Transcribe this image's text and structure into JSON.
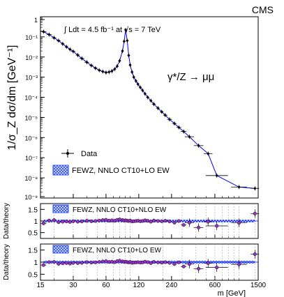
{
  "header": {
    "experiment": "CMS"
  },
  "chart_data": {
    "type": "scatter",
    "x_scale": "log",
    "x_ticks": [
      15,
      30,
      60,
      120,
      240,
      600,
      1500
    ],
    "x_tick_labels": [
      "15",
      "30",
      "60",
      "120",
      "240",
      "600",
      "1500"
    ],
    "xlabel": "m  [GeV]",
    "main": {
      "ylabel": "1/σ_Z dσ/dm [GeV⁻¹]",
      "y_scale": "log",
      "ylim": [
        1e-09,
        1
      ],
      "y_tick_labels": [
        "1",
        "10⁻¹",
        "10⁻²",
        "10⁻³",
        "10⁻⁴",
        "10⁻⁵",
        "10⁻⁶",
        "10⁻⁷",
        "10⁻⁸",
        "10⁻⁹"
      ],
      "lumi_text": "∫ Ldt = 4.5 fb⁻¹ at √s = 7 TeV",
      "process_label": "γ*/Z → μμ",
      "legend": [
        "Data",
        "FEWZ, NNLO CT10+LO EW"
      ],
      "data_x": [
        16,
        18,
        20,
        22,
        24,
        26,
        28,
        30,
        33,
        36,
        40,
        44,
        48,
        52,
        56,
        60,
        64,
        68,
        72,
        76,
        80,
        85,
        88,
        91,
        94,
        97,
        100,
        104,
        108,
        113,
        118,
        124,
        130,
        137,
        145,
        155,
        165,
        180,
        195,
        210,
        230,
        255,
        280,
        310,
        350,
        425,
        520,
        625,
        1000,
        1400
      ],
      "data_y": [
        0.18,
        0.13,
        0.09,
        0.065,
        0.045,
        0.032,
        0.024,
        0.019,
        0.0125,
        0.0085,
        0.0055,
        0.0038,
        0.0028,
        0.0022,
        0.0019,
        0.0017,
        0.0018,
        0.002,
        0.0025,
        0.0035,
        0.0065,
        0.02,
        0.06,
        0.22,
        0.065,
        0.012,
        0.004,
        0.0018,
        0.001,
        0.00065,
        0.00045,
        0.00031,
        0.00022,
        0.00015,
        0.0001,
        6.8e-05,
        4.6e-05,
        2.9e-05,
        1.9e-05,
        1.3e-05,
        8e-06,
        5e-06,
        3.2e-06,
        2e-06,
        1.1e-06,
        4e-07,
        1.6e-07,
        1.3e-08,
        3.5e-09,
        3e-09
      ]
    },
    "ratio_panels": [
      {
        "legend": "FEWZ, NNLO CT10+NLO EW",
        "ylabel": "Data/theory",
        "ylim": [
          0.25,
          1.75
        ],
        "y_tick_labels": [
          "1.5",
          "1",
          "0.5"
        ],
        "values": [
          0.9,
          1.02,
          1.04,
          0.95,
          0.97,
          0.98,
          0.96,
          0.99,
          0.97,
          0.98,
          1.01,
          0.99,
          1.0,
          1.02,
          1.04,
          1.05,
          1.02,
          1.03,
          1.01,
          1.05,
          1.07,
          1.04,
          1.02,
          1.03,
          1.01,
          1.0,
          1.02,
          0.98,
          0.99,
          1.0,
          1.01,
          0.99,
          1.0,
          1.03,
          1.01,
          0.97,
          1.02,
          1.0,
          0.99,
          1.01,
          0.98,
          0.93,
          1.0,
          0.83,
          0.93,
          0.72,
          0.97,
          0.79,
          0.92,
          1.32
        ]
      },
      {
        "legend": "FEWZ, NNLO CT10+LO EW",
        "ylabel": "Data/theory",
        "ylim": [
          0.25,
          1.75
        ],
        "y_tick_labels": [
          "1.5",
          "1",
          "0.5"
        ],
        "values": [
          0.88,
          1.0,
          1.01,
          0.93,
          0.95,
          0.96,
          0.94,
          0.97,
          0.96,
          0.97,
          1.0,
          0.98,
          0.99,
          1.01,
          1.03,
          1.04,
          1.01,
          1.02,
          1.0,
          1.04,
          1.06,
          1.03,
          1.01,
          1.02,
          1.0,
          0.99,
          1.01,
          0.97,
          0.98,
          0.99,
          1.0,
          0.98,
          0.99,
          1.02,
          1.0,
          0.96,
          1.01,
          0.99,
          0.98,
          1.0,
          0.97,
          0.92,
          0.99,
          0.82,
          0.92,
          0.73,
          0.96,
          0.78,
          0.91,
          1.33
        ]
      }
    ],
    "colors": {
      "theory": "#3333ff",
      "band": "#2b4fff",
      "data_marker": "#9933cc",
      "line": "#0000ee"
    }
  }
}
